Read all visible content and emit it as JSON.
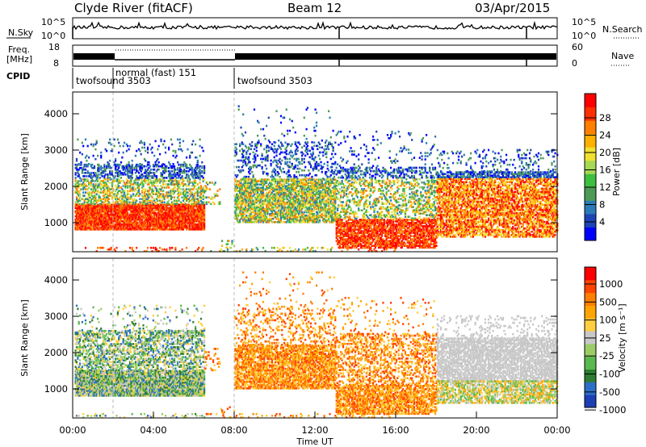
{
  "header": {
    "station": "Clyde River (fitACF)",
    "beam": "Beam 12",
    "date": "03/Apr/2015"
  },
  "noise_panel": {
    "left_label": "N.Sky",
    "right_label": "N.Search",
    "ticks_left": [
      "10^5",
      "10^0"
    ],
    "ticks_right": [
      "10^5",
      "10^0"
    ]
  },
  "freq_panel": {
    "left_label_1": "Freq.",
    "left_label_2": "[MHz]",
    "right_label": "Nave",
    "ticks_left": [
      "18",
      "8"
    ],
    "ticks_right": [
      "60",
      "0"
    ]
  },
  "cpid": {
    "label": "CPID",
    "segments": [
      {
        "name": "twofsound 3503",
        "start_hour": 0.0
      },
      {
        "name": "normal (fast) 151",
        "start_hour": 2.0
      },
      {
        "name": "twofsound 3503",
        "start_hour": 8.0
      }
    ]
  },
  "chart_data": [
    {
      "type": "heatmap",
      "name": "power",
      "ylabel": "Slant Range [km]",
      "xlabel": "",
      "xlim_hours": [
        0,
        24
      ],
      "ylim": [
        200,
        4600
      ],
      "yticks": [
        1000,
        2000,
        3000,
        4000
      ],
      "colorbar": {
        "label": "Power [dB]",
        "ticks": [
          "4",
          "8",
          "12",
          "16",
          "20",
          "24",
          "28"
        ],
        "colors": [
          "#0000ff",
          "#1c44b4",
          "#2c7bb6",
          "#4c9a56",
          "#3fbf3f",
          "#a6d854",
          "#f0e130",
          "#ffb000",
          "#ff7f00",
          "#ff3000",
          "#ff0000"
        ]
      }
    },
    {
      "type": "heatmap",
      "name": "velocity",
      "ylabel": "Slant Range [km]",
      "xlabel": "Time UT",
      "xlim_hours": [
        0,
        24
      ],
      "ylim": [
        200,
        4600
      ],
      "yticks": [
        1000,
        2000,
        3000,
        4000
      ],
      "xticks": [
        "00:00",
        "04:00",
        "08:00",
        "12:00",
        "16:00",
        "20:00",
        "00:00"
      ],
      "colorbar": {
        "label": "Velocity [m s⁻¹]",
        "ticks": [
          "1000",
          "500",
          "100",
          "25",
          "-25",
          "-100",
          "-500",
          "-1000"
        ],
        "colors": [
          "#1c3fb4",
          "#2c6fc8",
          "#2e7d32",
          "#5ab84e",
          "#9ccc65",
          "#c8c8c8",
          "#ffcf40",
          "#ffa500",
          "#ff7f00",
          "#ff4400",
          "#ff0000"
        ]
      }
    }
  ]
}
